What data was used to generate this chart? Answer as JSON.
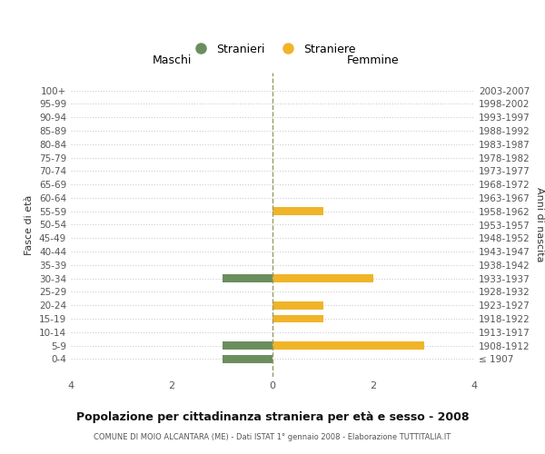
{
  "age_groups": [
    "100+",
    "95-99",
    "90-94",
    "85-89",
    "80-84",
    "75-79",
    "70-74",
    "65-69",
    "60-64",
    "55-59",
    "50-54",
    "45-49",
    "40-44",
    "35-39",
    "30-34",
    "25-29",
    "20-24",
    "15-19",
    "10-14",
    "5-9",
    "0-4"
  ],
  "birth_years": [
    "≤ 1907",
    "1908-1912",
    "1913-1917",
    "1918-1922",
    "1923-1927",
    "1928-1932",
    "1933-1937",
    "1938-1942",
    "1943-1947",
    "1948-1952",
    "1953-1957",
    "1958-1962",
    "1963-1967",
    "1968-1972",
    "1973-1977",
    "1978-1982",
    "1983-1987",
    "1988-1992",
    "1993-1997",
    "1998-2002",
    "2003-2007"
  ],
  "males": [
    0,
    0,
    0,
    0,
    0,
    0,
    0,
    0,
    0,
    0,
    0,
    0,
    0,
    0,
    1,
    0,
    0,
    0,
    0,
    1,
    1
  ],
  "females": [
    0,
    0,
    0,
    0,
    0,
    0,
    0,
    0,
    0,
    1,
    0,
    0,
    0,
    0,
    2,
    0,
    1,
    1,
    0,
    3,
    0
  ],
  "male_color": "#6b8e5e",
  "female_color": "#f0b429",
  "xlim": 4,
  "title": "Popolazione per cittadinanza straniera per età e sesso - 2008",
  "subtitle": "COMUNE DI MOIO ALCANTARA (ME) - Dati ISTAT 1° gennaio 2008 - Elaborazione TUTTITALIA.IT",
  "ylabel_left": "Fasce di età",
  "ylabel_right": "Anni di nascita",
  "legend_male": "Stranieri",
  "legend_female": "Straniere",
  "maschi_label": "Maschi",
  "femmine_label": "Femmine",
  "bg_color": "#ffffff",
  "grid_color": "#cccccc",
  "xticks": [
    -4,
    -2,
    0,
    2,
    4
  ],
  "xticklabels": [
    "4",
    "2",
    "0",
    "2",
    "4"
  ]
}
